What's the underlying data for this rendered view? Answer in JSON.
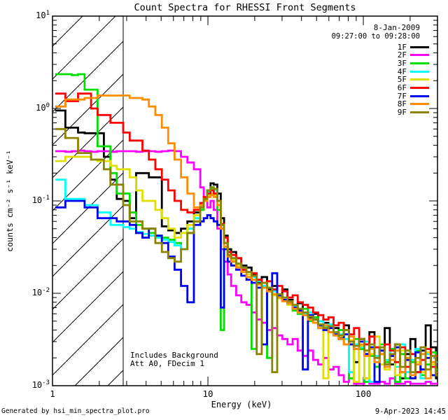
{
  "title": "Count Spectra for RHESSI Front Segments",
  "header": {
    "date": "8-Jan-2009",
    "time_range": "09:27:00 to 09:28:00"
  },
  "annotations": {
    "background_note": "Includes Background",
    "attenuator_note": "Att A0, FDecim 1"
  },
  "footer": {
    "generated_by": "Generated by hsi_min_spectra_plot.pro",
    "timestamp": "9-Apr-2023 14:45"
  },
  "axes": {
    "x_label": "Energy (keV)",
    "y_label": "counts cm⁻² s⁻¹ keV⁻¹",
    "x_scale": "log",
    "y_scale": "log",
    "x_range": [
      1,
      300
    ],
    "y_range": [
      0.001,
      10
    ],
    "x_ticks": [
      {
        "label": "1",
        "value": 1
      },
      {
        "label": "10",
        "value": 10
      },
      {
        "label": "100",
        "value": 100
      }
    ],
    "y_ticks": [
      {
        "base": "10",
        "exp": "1",
        "value": 10
      },
      {
        "base": "10",
        "exp": "0",
        "value": 1
      },
      {
        "base": "10",
        "exp": "-1",
        "value": 0.1
      },
      {
        "base": "10",
        "exp": "-2",
        "value": 0.01
      },
      {
        "base": "10",
        "exp": "-3",
        "value": 0.001
      }
    ]
  },
  "chart_data": {
    "type": "line",
    "step_mode": true,
    "title": "Count Spectra for RHESSI Front Segments",
    "xlabel": "Energy (keV)",
    "ylabel": "counts cm⁻² s⁻¹ keV⁻¹",
    "xlim": [
      1,
      300
    ],
    "ylim": [
      0.001,
      10
    ],
    "log_x": true,
    "log_y": true,
    "legend_position": "top-right-inside",
    "grid": false,
    "hatched_exclusion_region_kev": [
      1,
      2.85
    ],
    "x_bin_edges_kev": [
      1.04,
      1.1,
      1.21,
      1.33,
      1.46,
      1.61,
      1.77,
      1.95,
      2.14,
      2.36,
      2.59,
      2.85,
      3.14,
      3.45,
      3.79,
      4.17,
      4.59,
      5.05,
      5.55,
      6.1,
      6.71,
      7.38,
      8.12,
      8.93,
      9.4,
      9.9,
      10.4,
      10.9,
      11.5,
      12.1,
      12.7,
      13.4,
      14.1,
      15.2,
      16.4,
      17.7,
      19.1,
      20.6,
      22.2,
      24.0,
      25.9,
      27.9,
      30.1,
      32.5,
      35.1,
      37.8,
      40.8,
      44.0,
      47.5,
      51.2,
      55.3,
      59.6,
      64.3,
      69.4,
      74.9,
      80.8,
      87.1,
      94.0,
      101.4,
      109.4,
      118.0,
      127.3,
      137.3,
      148.1,
      159.8,
      172.4,
      186.0,
      200.6,
      216.4,
      233.5,
      251.9,
      271.7,
      293.1,
      300
    ],
    "series": [
      {
        "name": "1F",
        "color": "#000000",
        "values": [
          0.95,
          0.95,
          0.62,
          0.62,
          0.55,
          0.54,
          0.54,
          0.54,
          0.3,
          0.17,
          0.105,
          0.1,
          0.065,
          0.2,
          0.2,
          0.18,
          0.18,
          0.053,
          0.048,
          0.045,
          0.05,
          0.06,
          0.075,
          0.09,
          0.105,
          0.13,
          0.155,
          0.15,
          0.12,
          0.065,
          0.042,
          0.03,
          0.028,
          0.024,
          0.02,
          0.019,
          0.016,
          0.013,
          0.015,
          0.011,
          0.012,
          0.009,
          0.011,
          0.0085,
          0.007,
          0.0078,
          0.0062,
          0.0055,
          0.006,
          0.0045,
          0.0048,
          0.0038,
          0.0042,
          0.0033,
          0.0045,
          0.0028,
          0.0018,
          0.0032,
          0.0022,
          0.0038,
          0.0016,
          0.0024,
          0.0042,
          0.0017,
          0.0028,
          0.0012,
          0.0022,
          0.0032,
          0.0014,
          0.0024,
          0.0045,
          0.0026,
          0.0012
        ]
      },
      {
        "name": "2F",
        "color": "#FF00FF",
        "values": [
          0.345,
          0.345,
          0.34,
          0.345,
          0.35,
          0.345,
          0.34,
          0.345,
          0.345,
          0.34,
          0.345,
          0.345,
          0.345,
          0.34,
          0.345,
          0.345,
          0.34,
          0.345,
          0.35,
          0.345,
          0.3,
          0.26,
          0.22,
          0.14,
          0.1,
          0.085,
          0.1,
          0.08,
          0.05,
          0.03,
          0.022,
          0.016,
          0.012,
          0.0095,
          0.008,
          0.0075,
          0.0062,
          0.0052,
          0.0048,
          0.004,
          0.0042,
          0.0035,
          0.0032,
          0.0028,
          0.0032,
          0.0024,
          0.0021,
          0.0024,
          0.0019,
          0.0017,
          0.002,
          0.0015,
          0.0016,
          0.0013,
          0.0011,
          0.0014,
          0.00105,
          0.00105,
          0.0012,
          0.00105,
          0.00105,
          0.0011,
          0.00105,
          0.0012,
          0.00105,
          0.00105,
          0.0011,
          0.00105,
          0.00105,
          0.00105,
          0.0011,
          0.00105,
          0.00105
        ]
      },
      {
        "name": "3F",
        "color": "#00DF00",
        "values": [
          2.35,
          2.35,
          2.35,
          2.3,
          2.35,
          1.6,
          1.6,
          0.39,
          0.39,
          0.2,
          0.12,
          0.12,
          0.075,
          0.055,
          0.05,
          0.045,
          0.042,
          0.04,
          0.038,
          0.035,
          0.03,
          0.045,
          0.06,
          0.08,
          0.1,
          0.12,
          0.135,
          0.12,
          0.08,
          0.004,
          0.035,
          0.025,
          0.022,
          0.02,
          0.018,
          0.015,
          0.0025,
          0.014,
          0.012,
          0.002,
          0.011,
          0.009,
          0.0085,
          0.008,
          0.0065,
          0.006,
          0.0068,
          0.005,
          0.0055,
          0.0042,
          0.0045,
          0.0038,
          0.0035,
          0.004,
          0.0028,
          0.0012,
          0.0032,
          0.0025,
          0.0011,
          0.0021,
          0.0016,
          0.0028,
          0.0018,
          0.0025,
          0.0011,
          0.0022,
          0.0012,
          0.0018,
          0.0024,
          0.0013,
          0.0017,
          0.0023,
          0.0015
        ]
      },
      {
        "name": "4F",
        "color": "#00FFFF",
        "values": [
          0.17,
          0.17,
          0.105,
          0.105,
          0.105,
          0.09,
          0.09,
          0.075,
          0.075,
          0.055,
          0.055,
          0.052,
          0.05,
          0.046,
          0.044,
          0.042,
          0.04,
          0.038,
          0.036,
          0.033,
          0.03,
          0.05,
          0.065,
          0.085,
          0.105,
          0.125,
          0.14,
          0.13,
          0.1,
          0.055,
          0.035,
          0.028,
          0.024,
          0.021,
          0.019,
          0.016,
          0.015,
          0.0135,
          0.012,
          0.0115,
          0.0105,
          0.0095,
          0.009,
          0.008,
          0.0072,
          0.0068,
          0.006,
          0.0062,
          0.0052,
          0.005,
          0.0044,
          0.0046,
          0.0038,
          0.0036,
          0.0032,
          0.0014,
          0.0028,
          0.0026,
          0.003,
          0.0011,
          0.0021,
          0.0026,
          0.0019,
          0.0024,
          0.0016,
          0.0028,
          0.0014,
          0.0019,
          0.0025,
          0.0012,
          0.0022,
          0.0013,
          0.0018
        ]
      },
      {
        "name": "5F",
        "color": "#E0E000",
        "values": [
          0.27,
          0.27,
          0.3,
          0.3,
          0.3,
          0.3,
          0.28,
          0.27,
          0.27,
          0.24,
          0.22,
          0.22,
          0.18,
          0.13,
          0.1,
          0.1,
          0.08,
          0.065,
          0.05,
          0.04,
          0.045,
          0.055,
          0.07,
          0.085,
          0.1,
          0.115,
          0.12,
          0.115,
          0.09,
          0.05,
          0.032,
          0.026,
          0.023,
          0.02,
          0.018,
          0.016,
          0.014,
          0.0125,
          0.0115,
          0.0105,
          0.0095,
          0.0088,
          0.0082,
          0.0075,
          0.007,
          0.0062,
          0.0058,
          0.0052,
          0.0048,
          0.0044,
          0.0012,
          0.0042,
          0.0036,
          0.0034,
          0.0028,
          0.0031,
          0.0011,
          0.0027,
          0.0012,
          0.0022,
          0.0034,
          0.0017,
          0.0015,
          0.0021,
          0.0013,
          0.0024,
          0.0016,
          0.0012,
          0.0018,
          0.0014,
          0.0023,
          0.0017,
          0.0013
        ]
      },
      {
        "name": "6F",
        "color": "#FF0000",
        "values": [
          1.45,
          1.45,
          1.2,
          1.2,
          1.45,
          1.45,
          1.0,
          0.85,
          0.85,
          0.7,
          0.7,
          0.55,
          0.45,
          0.45,
          0.35,
          0.28,
          0.22,
          0.17,
          0.13,
          0.1,
          0.08,
          0.075,
          0.08,
          0.095,
          0.11,
          0.12,
          0.13,
          0.12,
          0.1,
          0.056,
          0.04,
          0.028,
          0.026,
          0.024,
          0.018,
          0.017,
          0.0165,
          0.014,
          0.013,
          0.0135,
          0.011,
          0.012,
          0.0105,
          0.009,
          0.0095,
          0.008,
          0.0075,
          0.007,
          0.0062,
          0.0058,
          0.0052,
          0.0055,
          0.0045,
          0.0048,
          0.004,
          0.0036,
          0.0042,
          0.0032,
          0.0028,
          0.0034,
          0.0026,
          0.0022,
          0.0028,
          0.0024,
          0.0018,
          0.0026,
          0.0016,
          0.0022,
          0.0014,
          0.0019,
          0.0025,
          0.0016,
          0.0021
        ]
      },
      {
        "name": "7F",
        "color": "#0000F0",
        "values": [
          0.085,
          0.085,
          0.1,
          0.1,
          0.1,
          0.085,
          0.085,
          0.065,
          0.065,
          0.065,
          0.06,
          0.06,
          0.055,
          0.045,
          0.04,
          0.05,
          0.042,
          0.035,
          0.025,
          0.018,
          0.012,
          0.008,
          0.055,
          0.06,
          0.065,
          0.07,
          0.065,
          0.06,
          0.055,
          0.007,
          0.03,
          0.022,
          0.02,
          0.018,
          0.0155,
          0.014,
          0.013,
          0.0115,
          0.0028,
          0.0105,
          0.0165,
          0.0095,
          0.0085,
          0.0078,
          0.007,
          0.0065,
          0.0015,
          0.0058,
          0.0052,
          0.0045,
          0.004,
          0.0042,
          0.0036,
          0.0032,
          0.0036,
          0.0028,
          0.0025,
          0.003,
          0.0022,
          0.0026,
          0.0011,
          0.0024,
          0.0016,
          0.0021,
          0.0026,
          0.0014,
          0.0019,
          0.0012,
          0.0023,
          0.0015,
          0.002,
          0.0013,
          0.0017
        ]
      },
      {
        "name": "8F",
        "color": "#FF8C00",
        "values": [
          1.05,
          1.05,
          1.25,
          1.25,
          1.25,
          1.3,
          1.3,
          1.38,
          1.38,
          1.38,
          1.38,
          1.38,
          1.3,
          1.3,
          1.25,
          1.05,
          0.85,
          0.62,
          0.42,
          0.28,
          0.18,
          0.12,
          0.085,
          0.09,
          0.1,
          0.11,
          0.115,
          0.11,
          0.09,
          0.05,
          0.032,
          0.025,
          0.022,
          0.019,
          0.017,
          0.015,
          0.014,
          0.0125,
          0.0115,
          0.0105,
          0.0098,
          0.009,
          0.0082,
          0.0078,
          0.0068,
          0.0062,
          0.0058,
          0.0052,
          0.0048,
          0.0042,
          0.0045,
          0.0038,
          0.0035,
          0.0032,
          0.0028,
          0.0034,
          0.0025,
          0.0028,
          0.0021,
          0.0025,
          0.0018,
          0.0022,
          0.0016,
          0.0019,
          0.0024,
          0.0014,
          0.002,
          0.0013,
          0.0017,
          0.0022,
          0.0012,
          0.0018,
          0.0014
        ]
      },
      {
        "name": "9F",
        "color": "#8C8400",
        "values": [
          0.6,
          0.6,
          0.48,
          0.48,
          0.33,
          0.33,
          0.28,
          0.28,
          0.22,
          0.15,
          0.15,
          0.09,
          0.06,
          0.06,
          0.05,
          0.05,
          0.035,
          0.028,
          0.024,
          0.022,
          0.03,
          0.045,
          0.06,
          0.085,
          0.105,
          0.13,
          0.14,
          0.135,
          0.1,
          0.055,
          0.035,
          0.026,
          0.024,
          0.021,
          0.019,
          0.017,
          0.0155,
          0.0022,
          0.013,
          0.0115,
          0.0014,
          0.0098,
          0.009,
          0.0082,
          0.0075,
          0.0068,
          0.0062,
          0.0056,
          0.0052,
          0.0046,
          0.0042,
          0.0044,
          0.0038,
          0.0035,
          0.004,
          0.003,
          0.0027,
          0.0032,
          0.0024,
          0.0028,
          0.002,
          0.0026,
          0.0017,
          0.0022,
          0.0028,
          0.0016,
          0.0024,
          0.0014,
          0.002,
          0.0026,
          0.0015,
          0.0021,
          0.0013
        ]
      }
    ]
  }
}
